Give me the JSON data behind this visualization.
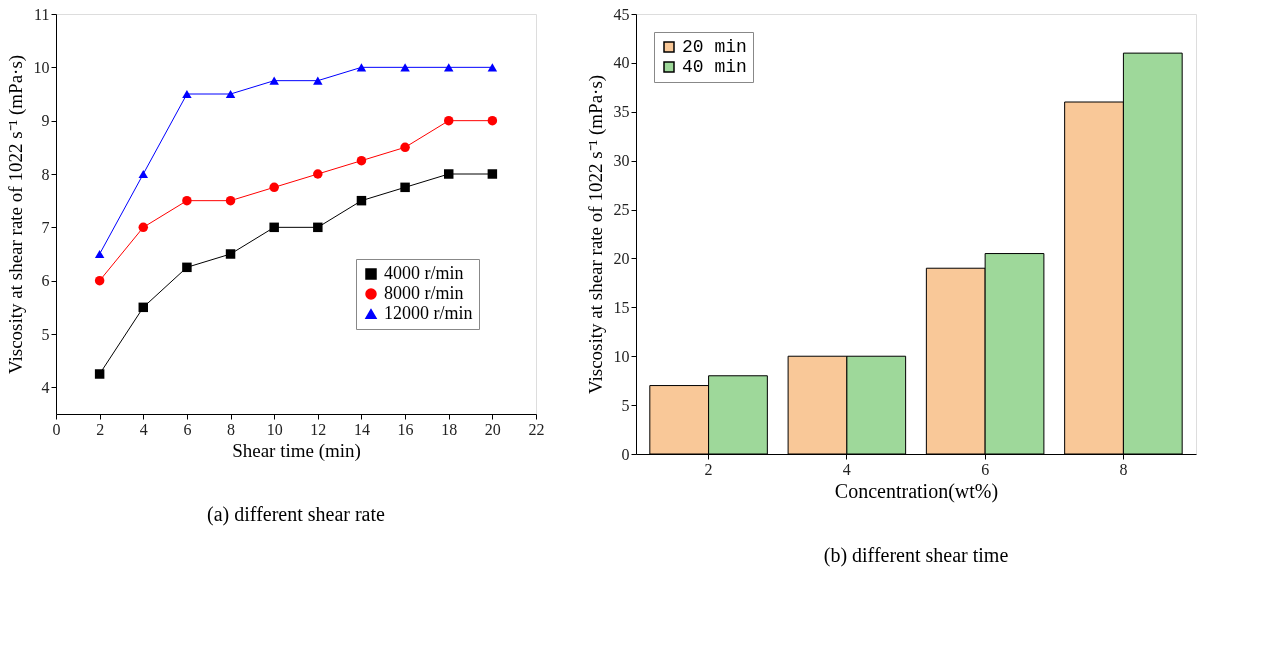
{
  "chart_data": [
    {
      "type": "line",
      "xlabel": "Shear time (min)",
      "ylabel": "Viscosity at shear rate of 1022 s⁻¹ (mPa·s)",
      "x": [
        2,
        4,
        6,
        8,
        10,
        12,
        14,
        16,
        18,
        20
      ],
      "series": [
        {
          "name": "4000 r/min",
          "color": "#000000",
          "marker": "square",
          "values": [
            4.25,
            5.5,
            6.25,
            6.5,
            7,
            7,
            7.5,
            7.75,
            8,
            8
          ]
        },
        {
          "name": "8000 r/min",
          "color": "#ff0000",
          "marker": "circle",
          "values": [
            6,
            7,
            7.5,
            7.5,
            7.75,
            8,
            8.25,
            8.5,
            9,
            9
          ]
        },
        {
          "name": "12000 r/min",
          "color": "#0000ff",
          "marker": "triangle",
          "values": [
            6.5,
            8,
            9.5,
            9.5,
            9.75,
            9.75,
            10,
            10,
            10,
            10
          ]
        }
      ],
      "xlim": [
        0,
        22
      ],
      "xticks": [
        0,
        2,
        4,
        6,
        8,
        10,
        12,
        14,
        16,
        18,
        20,
        22
      ],
      "ylim": [
        3.5,
        11
      ],
      "yticks": [
        4,
        5,
        6,
        7,
        8,
        9,
        10,
        11
      ],
      "grid": false,
      "legend": "right",
      "line_style": "solid",
      "annotations": [
        "(a) different shear rate"
      ]
    },
    {
      "type": "bar",
      "xlabel": "Concentration(wt%)",
      "ylabel": "Viscosity at shear rate of 1022 s⁻¹ (mPa·s)",
      "categories": [
        "2",
        "4",
        "6",
        "8"
      ],
      "series": [
        {
          "name": "20 min",
          "color": "#f9c898",
          "values": [
            7,
            10,
            19,
            36
          ]
        },
        {
          "name": "40 min",
          "color": "#9ed89a",
          "values": [
            8,
            10,
            20.5,
            41
          ]
        }
      ],
      "ylim": [
        0,
        45
      ],
      "yticks": [
        0,
        5,
        10,
        15,
        20,
        25,
        30,
        35,
        40,
        45
      ],
      "grid": false,
      "legend": "top left",
      "annotations": [
        "(b) different shear time"
      ]
    }
  ]
}
